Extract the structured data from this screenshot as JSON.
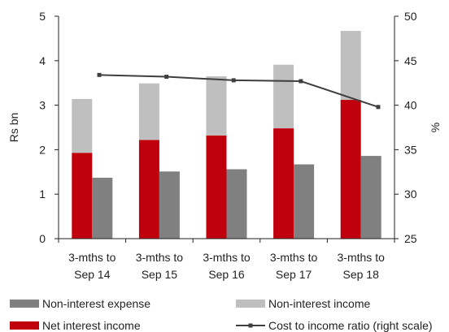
{
  "chart_data": {
    "type": "bar",
    "title": "",
    "categories": [
      [
        "3-mths to",
        "Sep 14"
      ],
      [
        "3-mths to",
        "Sep 15"
      ],
      [
        "3-mths to",
        "Sep 16"
      ],
      [
        "3-mths to",
        "Sep 17"
      ],
      [
        "3-mths to",
        "Sep 18"
      ]
    ],
    "series": [
      {
        "name": "Net interest income",
        "kind": "stacked-bar-bottom",
        "axis": "left",
        "color": "#c0000d",
        "values": [
          1.93,
          2.22,
          2.32,
          2.48,
          3.12
        ]
      },
      {
        "name": "Non-interest income",
        "kind": "stacked-bar-top",
        "axis": "left",
        "color": "#bfbfbf",
        "values": [
          1.21,
          1.27,
          1.33,
          1.43,
          1.55
        ]
      },
      {
        "name": "Non-interest expense",
        "kind": "bar",
        "axis": "left",
        "color": "#808080",
        "values": [
          1.37,
          1.51,
          1.56,
          1.67,
          1.86
        ]
      },
      {
        "name": "Cost to income ratio (right scale)",
        "kind": "line",
        "axis": "right",
        "color": "#3f3f3f",
        "values": [
          43.4,
          43.2,
          42.8,
          42.7,
          39.8
        ]
      }
    ],
    "y_left": {
      "label": "Rs bn",
      "min": 0,
      "max": 5,
      "ticks": [
        0,
        1,
        2,
        3,
        4,
        5
      ]
    },
    "y_right": {
      "label": "%",
      "min": 25,
      "max": 50,
      "ticks": [
        25,
        30,
        35,
        40,
        45,
        50
      ]
    },
    "grid": false,
    "legend_position": "bottom",
    "legend_order": [
      "Non-interest expense",
      "Non-interest income",
      "Net interest income",
      "Cost to income ratio (right scale)"
    ]
  }
}
